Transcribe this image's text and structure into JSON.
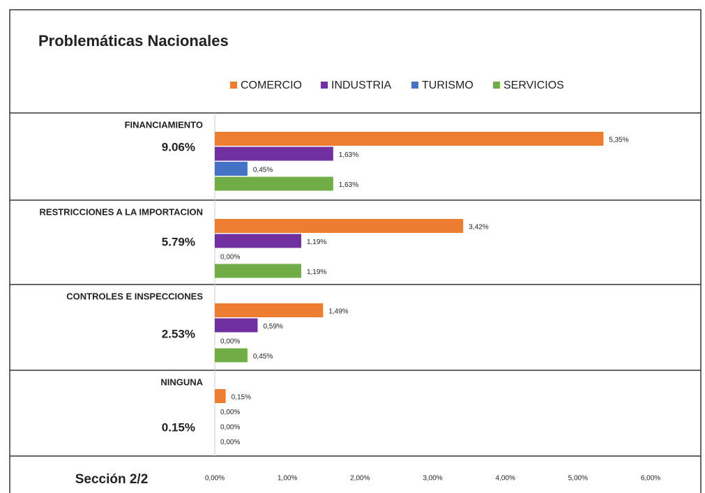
{
  "chart_data": {
    "type": "bar",
    "orientation": "horizontal",
    "title": "Problemáticas Nacionales",
    "footer": "Sección 2/2",
    "categories": [
      "FINANCIAMIENTO",
      "RESTRICCIONES A LA IMPORTACION",
      "CONTROLES E INSPECCIONES",
      "NINGUNA"
    ],
    "totals": [
      9.06,
      5.79,
      2.53,
      0.15
    ],
    "total_labels": [
      "9.06%",
      "5.79%",
      "2.53%",
      "0.15%"
    ],
    "series": [
      {
        "name": "COMERCIO",
        "color": "#ed7d31",
        "values": [
          5.35,
          3.42,
          1.49,
          0.15
        ],
        "value_labels": [
          "5,35%",
          "3,42%",
          "1,49%",
          "0,15%"
        ]
      },
      {
        "name": "INDUSTRIA",
        "color": "#7030a0",
        "values": [
          1.63,
          1.19,
          0.59,
          0
        ],
        "value_labels": [
          "1,63%",
          "1,19%",
          "0,59%",
          "0,00%"
        ]
      },
      {
        "name": "TURISMO",
        "color": "#4472c4",
        "values": [
          0.45,
          0,
          0,
          0
        ],
        "value_labels": [
          "0,45%",
          "0,00%",
          "0,00%",
          "0,00%"
        ]
      },
      {
        "name": "SERVICIOS",
        "color": "#70ad47",
        "values": [
          1.63,
          1.19,
          0.45,
          0
        ],
        "value_labels": [
          "1,63%",
          "1,19%",
          "0,45%",
          "0,00%"
        ]
      }
    ],
    "xlim": [
      0,
      6
    ],
    "xticks": [
      {
        "value": 0,
        "label": "0,00%"
      },
      {
        "value": 1,
        "label": "1,00%"
      },
      {
        "value": 2,
        "label": "2,00%"
      },
      {
        "value": 3,
        "label": "3,00%"
      },
      {
        "value": 4,
        "label": "4,00%"
      },
      {
        "value": 5,
        "label": "5,00%"
      },
      {
        "value": 6,
        "label": "6,00%"
      }
    ],
    "legend": "top"
  }
}
